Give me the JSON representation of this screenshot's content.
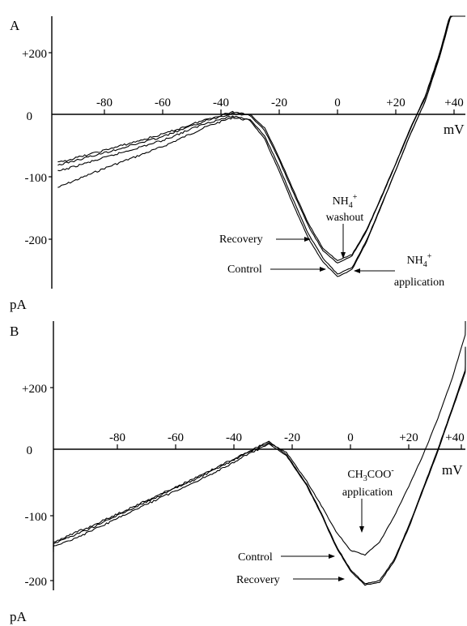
{
  "chart_data": [
    {
      "type": "line",
      "panel_label": "A",
      "xlabel": "mV",
      "ylabel": "pA",
      "xlim": [
        -96,
        44
      ],
      "ylim": [
        -300,
        300
      ],
      "x_ticks": [
        -80,
        -60,
        -40,
        -20,
        0,
        20,
        40
      ],
      "x_tick_labels": [
        "-80",
        "-60",
        "-40",
        "-20",
        "0",
        "+20",
        "+40"
      ],
      "y_ticks": [
        200,
        0,
        -100,
        -200
      ],
      "y_tick_labels": [
        "+200",
        "0",
        "-100",
        "-200"
      ],
      "series": [
        {
          "name": "Control",
          "x": [
            -96,
            -80,
            -60,
            -45,
            -36,
            -30,
            -25,
            -20,
            -15,
            -10,
            -5,
            0,
            5,
            10,
            15,
            20,
            25,
            30,
            35,
            40,
            44
          ],
          "y": [
            -118,
            -87,
            -52,
            -20,
            -5,
            -10,
            -40,
            -92,
            -148,
            -200,
            -238,
            -262,
            -250,
            -205,
            -148,
            -90,
            -32,
            20,
            92,
            178,
            260
          ]
        },
        {
          "name": "NH4+ application",
          "x": [
            -96,
            -80,
            -60,
            -45,
            -36,
            -30,
            -25,
            -20,
            -15,
            -10,
            -5,
            0,
            5,
            10,
            15,
            20,
            25,
            30,
            35,
            40,
            44
          ],
          "y": [
            -92,
            -70,
            -42,
            -14,
            -3,
            -8,
            -35,
            -85,
            -140,
            -193,
            -232,
            -258,
            -247,
            -203,
            -147,
            -90,
            -32,
            20,
            92,
            178,
            260
          ]
        },
        {
          "name": "NH4+ washout",
          "x": [
            -96,
            -80,
            -60,
            -45,
            -36,
            -30,
            -25,
            -20,
            -15,
            -10,
            -5,
            0,
            5,
            10,
            15,
            20,
            25,
            30,
            35,
            40,
            44
          ],
          "y": [
            -82,
            -62,
            -36,
            -10,
            2,
            -2,
            -26,
            -74,
            -128,
            -180,
            -220,
            -240,
            -228,
            -188,
            -135,
            -80,
            -24,
            26,
            96,
            180,
            262
          ]
        },
        {
          "name": "Recovery",
          "x": [
            -96,
            -80,
            -60,
            -45,
            -36,
            -30,
            -25,
            -20,
            -15,
            -10,
            -5,
            0,
            5,
            10,
            15,
            20,
            25,
            30,
            35,
            40,
            44
          ],
          "y": [
            -78,
            -58,
            -32,
            -8,
            4,
            0,
            -22,
            -70,
            -124,
            -176,
            -216,
            -236,
            -226,
            -186,
            -133,
            -79,
            -22,
            28,
            98,
            184,
            265
          ]
        }
      ],
      "annotations": [
        {
          "text": "Recovery",
          "x": -8,
          "y": -203
        },
        {
          "text": "Control",
          "x": -12,
          "y": -250
        },
        {
          "text": "NH4+ washout",
          "x": 1,
          "y": -226
        },
        {
          "text": "NH4+ application",
          "x": 3,
          "y": -253
        }
      ]
    },
    {
      "type": "line",
      "panel_label": "B",
      "xlabel": "mV",
      "ylabel": "pA",
      "xlim": [
        -106,
        42
      ],
      "ylim": [
        -230,
        330
      ],
      "x_ticks": [
        -80,
        -60,
        -40,
        -20,
        0,
        20,
        40
      ],
      "x_tick_labels": [
        "-80",
        "-60",
        "-40",
        "-20",
        "0",
        "+20",
        "+40"
      ],
      "y_ticks": [
        200,
        0,
        -100,
        -200
      ],
      "y_tick_labels": [
        "+200",
        "0",
        "-100",
        "-200"
      ],
      "series": [
        {
          "name": "Control",
          "x": [
            -106,
            -90,
            -70,
            -50,
            -35,
            -28,
            -22,
            -15,
            -10,
            -5,
            0,
            5,
            10,
            15,
            20,
            25,
            30,
            35,
            40,
            42
          ],
          "y": [
            -155,
            -125,
            -82,
            -40,
            -5,
            10,
            -5,
            -50,
            -88,
            -128,
            -158,
            -165,
            -145,
            -105,
            -58,
            -8,
            48,
            112,
            188,
            222
          ]
        },
        {
          "name": "CH3COO- application",
          "x": [
            -106,
            -90,
            -70,
            -50,
            -35,
            -28,
            -22,
            -15,
            -10,
            -5,
            0,
            5,
            10,
            15,
            20,
            25,
            30,
            35,
            40,
            42
          ],
          "y": [
            -152,
            -122,
            -80,
            -38,
            -3,
            12,
            -8,
            -55,
            -100,
            -150,
            -188,
            -210,
            -205,
            -172,
            -120,
            -60,
            0,
            65,
            132,
            160
          ]
        },
        {
          "name": "Recovery",
          "x": [
            -106,
            -90,
            -70,
            -50,
            -35,
            -28,
            -22,
            -15,
            -10,
            -5,
            0,
            5,
            10,
            15,
            20,
            25,
            30,
            35,
            40,
            42
          ],
          "y": [
            -160,
            -130,
            -86,
            -44,
            -8,
            8,
            -10,
            -57,
            -102,
            -152,
            -190,
            -212,
            -208,
            -175,
            -123,
            -63,
            -3,
            62,
            128,
            155
          ]
        }
      ],
      "annotations": [
        {
          "text": "CH3COO- application",
          "x": 6,
          "y": -143
        },
        {
          "text": "Control",
          "x": -5,
          "y": -178
        },
        {
          "text": "Recovery",
          "x": 0,
          "y": -207
        }
      ]
    }
  ]
}
